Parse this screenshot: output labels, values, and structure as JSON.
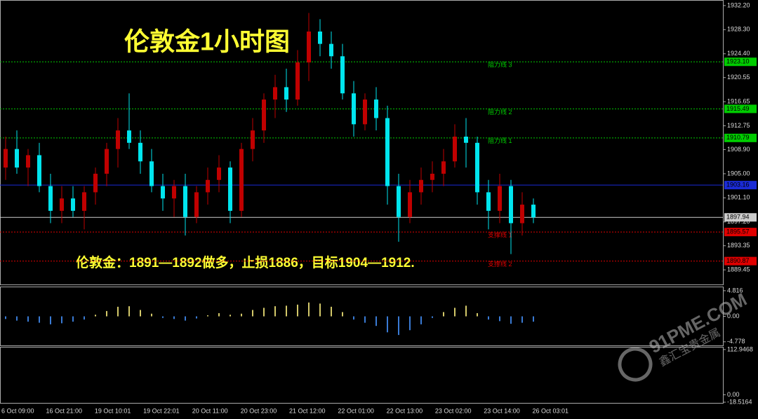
{
  "chart_data": {
    "type": "candlestick",
    "title": "伦敦金1小时图",
    "annotation": "伦敦金：1891—1892做多，止损1886，目标1904—1912.",
    "watermark": "91PME.COM",
    "watermark_sub": "鑫汇宝贵金属",
    "up_color": "#c00000",
    "down_color": "#00e5ee",
    "ylim": [
      1887.2,
      1933.1
    ],
    "yticks": [
      {
        "value": 1932.2,
        "label": "1932.20"
      },
      {
        "value": 1928.3,
        "label": "1928.30"
      },
      {
        "value": 1924.4,
        "label": "1924.40"
      },
      1920.55,
      1916.65,
      1912.75,
      {
        "value": 1908.9,
        "label": "1908.90"
      },
      {
        "value": 1905,
        "label": "1905.00"
      },
      {
        "value": 1901.1,
        "label": "1901.10"
      },
      {
        "value": 1897.2,
        "label": "1897.20"
      },
      1893.35,
      1889.45
    ],
    "levels": [
      {
        "name": "阻力线 3",
        "value": 1923.1,
        "price_label": "1923.10",
        "color": "#00cc00"
      },
      {
        "name": "阻力线 2",
        "value": 1915.49,
        "price_label": "1915.49",
        "color": "#00cc00"
      },
      {
        "name": "阻力线 1",
        "value": 1910.79,
        "price_label": "1910.79",
        "color": "#00cc00"
      },
      {
        "value": 1903.16,
        "price_label": "1903.16",
        "color": "#1a2bd6"
      },
      {
        "value": 1897.94,
        "price_label": "1897.94",
        "color": "#cccccc"
      },
      {
        "name": "支撑线 1",
        "value": 1895.57,
        "price_label": "1895.57",
        "color": "#e00000"
      },
      {
        "name": "支撑线 2",
        "value": 1890.87,
        "price_label": "1890.87",
        "color": "#e00000"
      }
    ],
    "ohlc": [
      [
        1906,
        1911,
        1904,
        1909
      ],
      [
        1909,
        1912,
        1905,
        1906
      ],
      [
        1906,
        1909,
        1903,
        1908
      ],
      [
        1908,
        1910,
        1902,
        1903
      ],
      [
        1903,
        1905,
        1897,
        1899
      ],
      [
        1899,
        1903,
        1897,
        1901
      ],
      [
        1901,
        1903,
        1898,
        1899
      ],
      [
        1899,
        1903,
        1896,
        1902
      ],
      [
        1902,
        1906,
        1900,
        1905
      ],
      [
        1905,
        1910,
        1903,
        1909
      ],
      [
        1909,
        1914,
        1906,
        1912
      ],
      [
        1912,
        1918,
        1909,
        1910
      ],
      [
        1910,
        1912,
        1905,
        1907
      ],
      [
        1907,
        1909,
        1902,
        1903
      ],
      [
        1903,
        1905,
        1899,
        1901
      ],
      [
        1901,
        1904,
        1898,
        1903
      ],
      [
        1903,
        1905,
        1895,
        1898
      ],
      [
        1898,
        1903,
        1897,
        1902
      ],
      [
        1902,
        1906,
        1900,
        1904
      ],
      [
        1904,
        1908,
        1902,
        1906
      ],
      [
        1906,
        1907,
        1897,
        1899
      ],
      [
        1899,
        1910,
        1898,
        1909
      ],
      [
        1909,
        1914,
        1907,
        1912
      ],
      [
        1912,
        1918,
        1910,
        1917
      ],
      [
        1917,
        1921,
        1914,
        1919
      ],
      [
        1919,
        1922,
        1915,
        1917
      ],
      [
        1917,
        1925,
        1916,
        1923
      ],
      [
        1923,
        1931,
        1920,
        1928
      ],
      [
        1928,
        1930,
        1924,
        1926
      ],
      [
        1926,
        1928,
        1922,
        1924
      ],
      [
        1924,
        1926,
        1917,
        1918
      ],
      [
        1918,
        1920,
        1911,
        1913
      ],
      [
        1913,
        1918,
        1912,
        1917
      ],
      [
        1917,
        1919,
        1912,
        1914
      ],
      [
        1914,
        1916,
        1900,
        1903
      ],
      [
        1903,
        1905,
        1894,
        1898
      ],
      [
        1898,
        1904,
        1897,
        1902
      ],
      [
        1902,
        1906,
        1900,
        1904
      ],
      [
        1904,
        1907,
        1902,
        1905
      ],
      [
        1905,
        1909,
        1903,
        1907
      ],
      [
        1907,
        1913,
        1906,
        1911
      ],
      [
        1911,
        1914,
        1906,
        1910
      ],
      [
        1910,
        1911,
        1900,
        1902
      ],
      [
        1902,
        1904,
        1896,
        1899
      ],
      [
        1899,
        1905,
        1897,
        1903
      ],
      [
        1903,
        1904,
        1892,
        1897
      ],
      [
        1897,
        1902,
        1895,
        1900
      ],
      [
        1900,
        1901,
        1897,
        1897.94
      ]
    ],
    "categories": [
      "6 Oct 09:00",
      "16 Oct 21:00",
      "19 Oct 10:01",
      "19 Oct 22:01",
      "20 Oct 11:00",
      "20 Oct 23:00",
      "21 Oct 12:00",
      "22 Oct 01:00",
      "22 Oct 13:00",
      "23 Oct 02:00",
      "23 Oct 14:00",
      "26 Oct 03:01"
    ],
    "macd": {
      "values": [
        -0.5,
        -0.8,
        -1,
        -1.2,
        -1.5,
        -1.3,
        -1,
        -0.6,
        0.3,
        1,
        1.8,
        1.9,
        1.2,
        0.5,
        -0.3,
        -0.5,
        -0.8,
        -0.4,
        0.2,
        0.6,
        0.3,
        0.5,
        1.2,
        1.6,
        1.9,
        2.0,
        2.2,
        2.6,
        2.4,
        1.8,
        0.8,
        -0.6,
        -1.2,
        -1.8,
        -3.0,
        -3.5,
        -2.6,
        -1.5,
        -0.3,
        0.8,
        1.6,
        2.0,
        0.6,
        -0.6,
        -0.9,
        -1.4,
        -1.2,
        -1.0
      ],
      "up_color": "#d4c96a",
      "down_color": "#3a7bd5",
      "ylim": [
        -5.46,
        5.46
      ],
      "yticks": [
        4.816,
        {
          "value": 0,
          "label": "0.00"
        },
        -4.778
      ]
    },
    "stoch": {
      "ylim": [
        -22,
        118
      ],
      "yticks": [
        112.9468,
        {
          "value": 0,
          "label": "0.00"
        },
        -18.5164
      ]
    }
  }
}
